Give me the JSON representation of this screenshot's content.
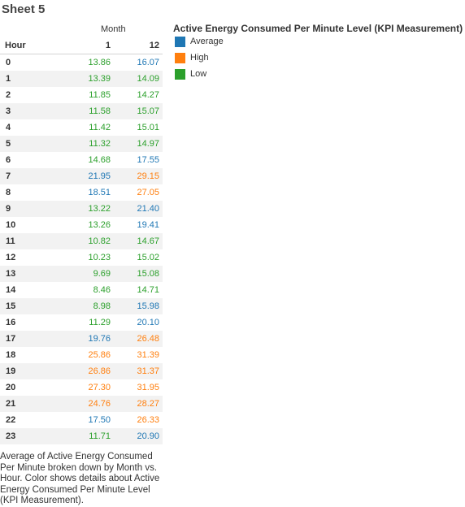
{
  "sheet_title": "Sheet 5",
  "chart_data": {
    "type": "table",
    "column_header_title": "Month",
    "row_header_title": "Hour",
    "columns": [
      "1",
      "12"
    ],
    "rows": [
      {
        "hour": "0",
        "values": [
          "13.86",
          "16.07"
        ],
        "levels": [
          "Low",
          "Average"
        ]
      },
      {
        "hour": "1",
        "values": [
          "13.39",
          "14.09"
        ],
        "levels": [
          "Low",
          "Low"
        ]
      },
      {
        "hour": "2",
        "values": [
          "11.85",
          "14.27"
        ],
        "levels": [
          "Low",
          "Low"
        ]
      },
      {
        "hour": "3",
        "values": [
          "11.58",
          "15.07"
        ],
        "levels": [
          "Low",
          "Low"
        ]
      },
      {
        "hour": "4",
        "values": [
          "11.42",
          "15.01"
        ],
        "levels": [
          "Low",
          "Low"
        ]
      },
      {
        "hour": "5",
        "values": [
          "11.32",
          "14.97"
        ],
        "levels": [
          "Low",
          "Low"
        ]
      },
      {
        "hour": "6",
        "values": [
          "14.68",
          "17.55"
        ],
        "levels": [
          "Low",
          "Average"
        ]
      },
      {
        "hour": "7",
        "values": [
          "21.95",
          "29.15"
        ],
        "levels": [
          "Average",
          "High"
        ]
      },
      {
        "hour": "8",
        "values": [
          "18.51",
          "27.05"
        ],
        "levels": [
          "Average",
          "High"
        ]
      },
      {
        "hour": "9",
        "values": [
          "13.22",
          "21.40"
        ],
        "levels": [
          "Low",
          "Average"
        ]
      },
      {
        "hour": "10",
        "values": [
          "13.26",
          "19.41"
        ],
        "levels": [
          "Low",
          "Average"
        ]
      },
      {
        "hour": "11",
        "values": [
          "10.82",
          "14.67"
        ],
        "levels": [
          "Low",
          "Low"
        ]
      },
      {
        "hour": "12",
        "values": [
          "10.23",
          "15.02"
        ],
        "levels": [
          "Low",
          "Low"
        ]
      },
      {
        "hour": "13",
        "values": [
          "9.69",
          "15.08"
        ],
        "levels": [
          "Low",
          "Low"
        ]
      },
      {
        "hour": "14",
        "values": [
          "8.46",
          "14.71"
        ],
        "levels": [
          "Low",
          "Low"
        ]
      },
      {
        "hour": "15",
        "values": [
          "8.98",
          "15.98"
        ],
        "levels": [
          "Low",
          "Average"
        ]
      },
      {
        "hour": "16",
        "values": [
          "11.29",
          "20.10"
        ],
        "levels": [
          "Low",
          "Average"
        ]
      },
      {
        "hour": "17",
        "values": [
          "19.76",
          "26.48"
        ],
        "levels": [
          "Average",
          "High"
        ]
      },
      {
        "hour": "18",
        "values": [
          "25.86",
          "31.39"
        ],
        "levels": [
          "High",
          "High"
        ]
      },
      {
        "hour": "19",
        "values": [
          "26.86",
          "31.37"
        ],
        "levels": [
          "High",
          "High"
        ]
      },
      {
        "hour": "20",
        "values": [
          "27.30",
          "31.95"
        ],
        "levels": [
          "High",
          "High"
        ]
      },
      {
        "hour": "21",
        "values": [
          "24.76",
          "28.27"
        ],
        "levels": [
          "High",
          "High"
        ]
      },
      {
        "hour": "22",
        "values": [
          "17.50",
          "26.33"
        ],
        "levels": [
          "Average",
          "High"
        ]
      },
      {
        "hour": "23",
        "values": [
          "11.71",
          "20.90"
        ],
        "levels": [
          "Low",
          "Average"
        ]
      }
    ],
    "legend": {
      "title": "Active Energy Consumed Per Minute Level (KPI Measurement)",
      "placement": "right",
      "items": [
        {
          "label": "Average",
          "color": "#1f77b4"
        },
        {
          "label": "High",
          "color": "#ff7f0e"
        },
        {
          "label": "Low",
          "color": "#2ca02c"
        }
      ]
    }
  },
  "caption": "Average of Active Energy Consumed Per Minute broken down by Month vs. Hour.  Color shows details about Active Energy Consumed Per Minute Level (KPI Measurement)."
}
